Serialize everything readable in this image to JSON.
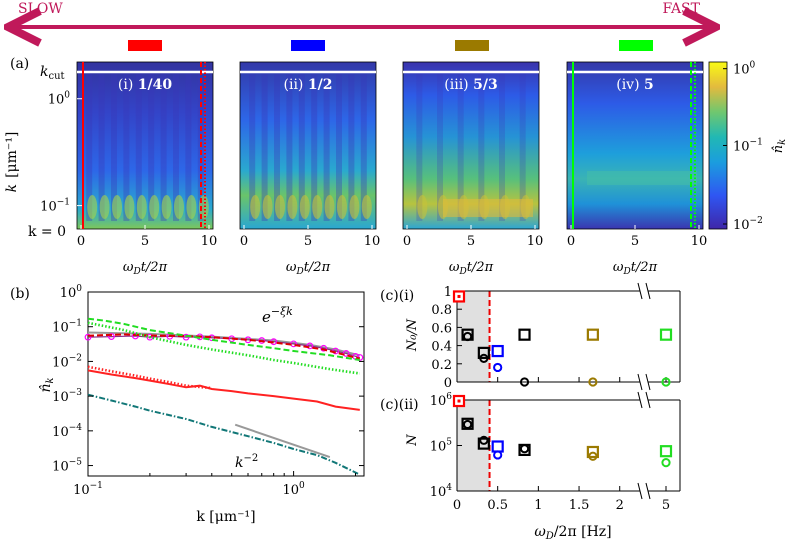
{
  "arrow": {
    "slow": "SLOW",
    "fast": "FAST",
    "color": "#c0195a",
    "swatches": [
      "#ff0000",
      "#0000ff",
      "#9b7a00",
      "#00ff00"
    ]
  },
  "panel_a": {
    "label": "(a)",
    "ylabel_k": "k",
    "ylabel_unit": "[μm⁻¹]",
    "kcut": "k",
    "kcut_sub": "cut",
    "k0": "k = 0",
    "xlabel": "ω",
    "xlabel_sub": "D",
    "xlabel_rest": "t/2π",
    "colorbar_label": "n̂",
    "colorbar_label_sub": "k",
    "colorbar_ticks": [
      {
        "base": "10",
        "exp": "0",
        "frac": 0.04
      },
      {
        "base": "10",
        "exp": "−1",
        "frac": 0.5
      },
      {
        "base": "10",
        "exp": "−2",
        "frac": 0.97
      }
    ],
    "heatmaps": [
      {
        "roman": "(i)",
        "value": "1/40",
        "xticks": [
          "0",
          "5",
          "10"
        ],
        "style": "comb",
        "solid": "#ff0000",
        "dashed": "#ff0000"
      },
      {
        "roman": "(ii)",
        "value": "1/2",
        "xticks": [
          "0",
          "5",
          "10"
        ],
        "style": "comb2"
      },
      {
        "roman": "(iii)",
        "value": "5/3",
        "xticks": [
          "0",
          "5",
          "10"
        ],
        "style": "smooth"
      },
      {
        "roman": "(iv)",
        "value": "5",
        "xticks": [
          "0",
          "5",
          "10"
        ],
        "style": "flat",
        "solid": "#00ff00",
        "dashed": "#00ff00"
      }
    ],
    "yticks": [
      {
        "label": "10",
        "exp": "0",
        "frac": 0.22
      },
      {
        "label": "10",
        "exp": "−1",
        "frac": 0.86
      }
    ]
  },
  "chart_data": [
    {
      "type": "line",
      "panel": "(b)",
      "xlabel": "k  [μm⁻¹]",
      "ylabel": "n̂_k",
      "xscale": "log",
      "yscale": "log",
      "xlim": [
        0.1,
        2.2
      ],
      "ylim": [
        5e-06,
        1
      ],
      "xticks": [
        "10⁻¹",
        "10⁰"
      ],
      "yticks": [
        "10⁰",
        "10⁻¹",
        "10⁻²",
        "10⁻³",
        "10⁻⁴",
        "10⁻⁵"
      ],
      "annotations": [
        "e^{−ξk}",
        "k^{−2}"
      ],
      "series": [
        {
          "color": "#999999",
          "style": "solid",
          "x": [
            0.1,
            0.2,
            0.4,
            0.8,
            1.2,
            1.6,
            2.1
          ],
          "y": [
            0.068,
            0.062,
            0.052,
            0.04,
            0.03,
            0.022,
            0.015
          ]
        },
        {
          "color": "#ff00ff",
          "style": "circle",
          "x": [
            0.1,
            0.13,
            0.17,
            0.2,
            0.25,
            0.3,
            0.35,
            0.4,
            0.5,
            0.6,
            0.7,
            0.8,
            1.0,
            1.2,
            1.4,
            1.6,
            1.8,
            2.0,
            2.1
          ],
          "y": [
            0.05,
            0.052,
            0.054,
            0.05,
            0.053,
            0.05,
            0.051,
            0.048,
            0.045,
            0.042,
            0.04,
            0.037,
            0.032,
            0.028,
            0.024,
            0.02,
            0.017,
            0.014,
            0.013
          ]
        },
        {
          "color": "#dd0000",
          "style": "dashed",
          "x": [
            0.1,
            0.15,
            0.2,
            0.3,
            0.4,
            0.6,
            0.8,
            1.0,
            1.4,
            2.1
          ],
          "y": [
            0.055,
            0.06,
            0.056,
            0.054,
            0.05,
            0.042,
            0.035,
            0.03,
            0.022,
            0.012
          ]
        },
        {
          "color": "#22dd22",
          "style": "dashed",
          "x": [
            0.1,
            0.12,
            0.15,
            0.2,
            0.3,
            0.4,
            0.6,
            0.8,
            1.0,
            1.5,
            2.1
          ],
          "y": [
            0.17,
            0.15,
            0.12,
            0.08,
            0.055,
            0.042,
            0.03,
            0.024,
            0.02,
            0.015,
            0.011
          ]
        },
        {
          "color": "#22dd22",
          "style": "dotted",
          "x": [
            0.1,
            0.15,
            0.2,
            0.3,
            0.4,
            0.6,
            0.8,
            1.0,
            1.5,
            2.1
          ],
          "y": [
            0.13,
            0.08,
            0.05,
            0.03,
            0.022,
            0.015,
            0.011,
            0.009,
            0.006,
            0.0045
          ]
        },
        {
          "color": "#ff2222",
          "style": "solid",
          "x": [
            0.1,
            0.13,
            0.17,
            0.2,
            0.25,
            0.3,
            0.35,
            0.4,
            0.5,
            0.6,
            0.8,
            1.0,
            1.3,
            1.6,
            2.1
          ],
          "y": [
            0.0055,
            0.0042,
            0.0033,
            0.0028,
            0.0022,
            0.0018,
            0.002,
            0.0016,
            0.0014,
            0.0012,
            0.001,
            0.00085,
            0.0007,
            0.0005,
            0.0004
          ]
        },
        {
          "color": "#ff2222",
          "style": "dotted",
          "x": [
            0.1,
            0.13,
            0.17,
            0.2,
            0.25,
            0.3,
            0.4
          ],
          "y": [
            0.007,
            0.0052,
            0.0039,
            0.0032,
            0.0025,
            0.002,
            0.0017
          ]
        },
        {
          "color": "#117777",
          "style": "dashdot",
          "x": [
            0.1,
            0.13,
            0.17,
            0.2,
            0.3,
            0.4,
            0.6,
            0.8,
            1.0,
            1.3,
            1.6,
            2.1
          ],
          "y": [
            0.0011,
            0.00075,
            0.0005,
            0.00038,
            0.00022,
            0.00013,
            7e-05,
            4.5e-05,
            3e-05,
            2e-05,
            1.2e-05,
            5.5e-06
          ]
        },
        {
          "color": "#999999",
          "style": "solid",
          "x": [
            0.52,
            1.5
          ],
          "y": [
            0.00015,
            1.75e-05
          ]
        }
      ]
    },
    {
      "type": "scatter",
      "panel": "(c)(i)",
      "xlabel": "ω_D/2π [Hz]",
      "ylabel": "N₀/N",
      "ylim": [
        0,
        1
      ],
      "yticks": [
        "0",
        "0.2",
        "0.4",
        "0.6",
        "0.8",
        "1"
      ],
      "xticks": [
        "0",
        "0.5",
        "1",
        "1.5",
        "2",
        "5"
      ],
      "cutoff_x": 0.4,
      "points": [
        {
          "x": 0.0,
          "y": 0.94,
          "marker": "square",
          "color": "#ff0000",
          "filled_center": true
        },
        {
          "x": 0.13,
          "y": 0.52,
          "marker": "square",
          "color": "#000000"
        },
        {
          "x": 0.13,
          "y": 0.5,
          "marker": "circle",
          "color": "#000000"
        },
        {
          "x": 0.33,
          "y": 0.32,
          "marker": "square",
          "color": "#000000"
        },
        {
          "x": 0.33,
          "y": 0.26,
          "marker": "circle",
          "color": "#000000"
        },
        {
          "x": 0.5,
          "y": 0.34,
          "marker": "square",
          "color": "#0000ff"
        },
        {
          "x": 0.5,
          "y": 0.16,
          "marker": "circle",
          "color": "#0000ff"
        },
        {
          "x": 0.83,
          "y": 0.52,
          "marker": "square",
          "color": "#000000"
        },
        {
          "x": 0.83,
          "y": 0.0,
          "marker": "circle",
          "color": "#000000"
        },
        {
          "x": 1.67,
          "y": 0.52,
          "marker": "square",
          "color": "#9b7a00"
        },
        {
          "x": 1.67,
          "y": 0.0,
          "marker": "circle",
          "color": "#9b7a00"
        },
        {
          "x": 5,
          "y": 0.52,
          "marker": "square",
          "color": "#22dd22"
        },
        {
          "x": 5,
          "y": 0.0,
          "marker": "circle",
          "color": "#22dd22"
        }
      ]
    },
    {
      "type": "scatter",
      "panel": "(c)(ii)",
      "xlabel": "ω_D/2π [Hz]",
      "ylabel": "N",
      "yscale": "log",
      "ylim": [
        10000,
        1000000
      ],
      "yticks": [
        "10⁴",
        "10⁵",
        "10⁶"
      ],
      "xticks": [
        "0",
        "0.5",
        "1",
        "1.5",
        "2",
        "5"
      ],
      "cutoff_x": 0.4,
      "points": [
        {
          "x": 0.0,
          "y": 950000,
          "marker": "square",
          "color": "#ff0000",
          "filled_center": true
        },
        {
          "x": 0.13,
          "y": 300000,
          "marker": "square",
          "color": "#000000"
        },
        {
          "x": 0.13,
          "y": 290000,
          "marker": "circle",
          "color": "#000000"
        },
        {
          "x": 0.33,
          "y": 110000,
          "marker": "square",
          "color": "#000000"
        },
        {
          "x": 0.33,
          "y": 130000,
          "marker": "circle",
          "color": "#000000"
        },
        {
          "x": 0.5,
          "y": 95000,
          "marker": "square",
          "color": "#0000ff"
        },
        {
          "x": 0.5,
          "y": 62000,
          "marker": "circle",
          "color": "#0000ff"
        },
        {
          "x": 0.83,
          "y": 80000,
          "marker": "square",
          "color": "#000000"
        },
        {
          "x": 0.83,
          "y": 85000,
          "marker": "circle",
          "color": "#000000"
        },
        {
          "x": 1.67,
          "y": 72000,
          "marker": "square",
          "color": "#9b7a00"
        },
        {
          "x": 1.67,
          "y": 58000,
          "marker": "circle",
          "color": "#9b7a00"
        },
        {
          "x": 5,
          "y": 75000,
          "marker": "square",
          "color": "#22dd22"
        },
        {
          "x": 5,
          "y": 42000,
          "marker": "circle",
          "color": "#22dd22"
        }
      ]
    }
  ],
  "panel_b": {
    "label": "(b)",
    "anno_exp_base": "e",
    "anno_exp_sup": "−ξk",
    "anno_pow_base": "k",
    "anno_pow_sup": "−2",
    "ylabel": "n̂",
    "ylabel_sub": "k",
    "xlabel": "k  [μm⁻¹]"
  },
  "panel_c": {
    "label_i": "(c)(i)",
    "label_ii": "(c)(ii)",
    "ylabel_i": "N₀/N",
    "ylabel_ii": "N",
    "xlabel": "ω",
    "xlabel_sub": "D",
    "xlabel_rest": "/2π [Hz]"
  }
}
